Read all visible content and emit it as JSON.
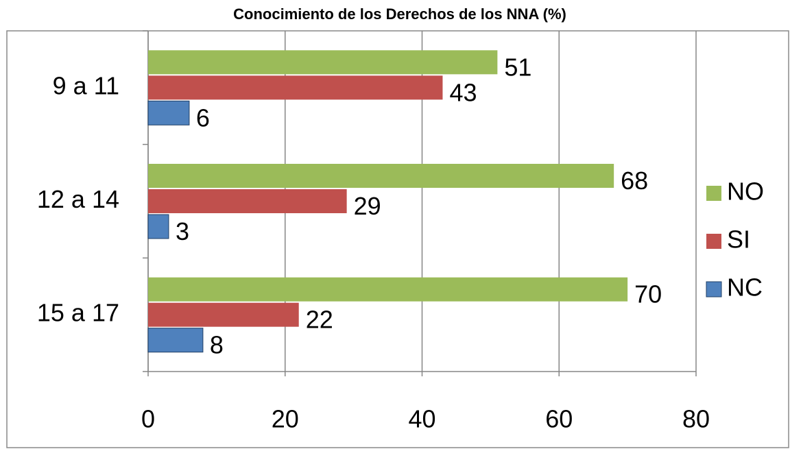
{
  "chart_data": {
    "type": "bar",
    "orientation": "horizontal",
    "title": "Conocimiento de los Derechos de los NNA (%)",
    "categories": [
      "9 a 11",
      "12 a 14",
      "15 a 17"
    ],
    "series": [
      {
        "name": "NO",
        "color": "#9bbb59",
        "values": [
          51,
          68,
          70
        ]
      },
      {
        "name": "SI",
        "color": "#c0504d",
        "values": [
          43,
          29,
          22
        ]
      },
      {
        "name": "NC",
        "color": "#4f81bd",
        "values": [
          6,
          3,
          8
        ]
      }
    ],
    "xlim": [
      0,
      80
    ],
    "xticks": [
      0,
      20,
      40,
      60,
      80
    ],
    "grid": true,
    "legend": "right"
  }
}
